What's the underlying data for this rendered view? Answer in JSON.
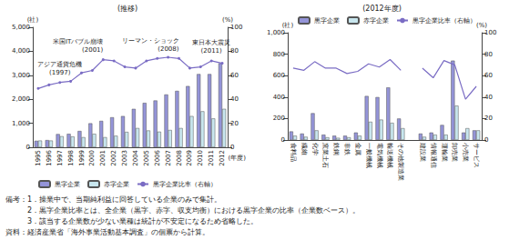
{
  "chart_data": [
    {
      "type": "bar",
      "title": "(推移)",
      "categories": [
        "1995",
        "1996",
        "1997",
        "1998",
        "1999",
        "2000",
        "2001",
        "2002",
        "2003",
        "2004",
        "2005",
        "2006",
        "2007",
        "2008",
        "2009",
        "2010",
        "2011",
        "2012"
      ],
      "series": [
        {
          "name": "黒字企業",
          "type": "bar",
          "color": "#9494d8",
          "values": [
            270,
            300,
            550,
            560,
            680,
            1000,
            1100,
            1250,
            1300,
            1600,
            1850,
            1950,
            2200,
            2350,
            2550,
            3050,
            3050,
            3500
          ]
        },
        {
          "name": "赤字企業",
          "type": "bar",
          "color": "#c8e6ee",
          "values": [
            280,
            280,
            460,
            450,
            420,
            560,
            420,
            480,
            640,
            800,
            700,
            650,
            720,
            800,
            1300,
            1500,
            1200,
            1600
          ]
        },
        {
          "name": "黒字企業比率（右軸）",
          "type": "line",
          "color": "#7a6cc4",
          "marker": "circle",
          "axis": "y2",
          "values": [
            49,
            52,
            54,
            55,
            62,
            64,
            73,
            72,
            67,
            66,
            72,
            74,
            75,
            74,
            66,
            67,
            72,
            70
          ]
        }
      ],
      "ylim": [
        0,
        5000
      ],
      "yticks": [
        0,
        {
          "value": 1000,
          "label": "1,000"
        },
        {
          "value": 2000,
          "label": "2,000"
        },
        {
          "value": 3000,
          "label": "3,000"
        },
        {
          "value": 4000,
          "label": "4,000"
        },
        {
          "value": 5000,
          "label": "5,000"
        }
      ],
      "y2lim": [
        0,
        100
      ],
      "y2ticks": [
        0,
        20,
        40,
        60,
        80,
        100
      ],
      "y_label": "(社)",
      "y2_label": "(%)",
      "x_label": "(年度)",
      "annotations": [
        {
          "text": "アジア通貨危機",
          "year": "(1997)",
          "x": "1997"
        },
        {
          "text": "米国ITバブル崩壊",
          "year": "(2001)",
          "x": "2001"
        },
        {
          "text": "リーマン・ショック",
          "year": "(2008)",
          "x": "2008"
        },
        {
          "text": "東日本大震災",
          "year": "(2011)",
          "x": "2011"
        }
      ],
      "legend": "bottom",
      "grid": false
    },
    {
      "type": "bar",
      "title": "(2012年度)",
      "categories": [
        "食料品",
        "繊維",
        "化学",
        "窯業土石",
        "鉄鋼",
        "非鉄",
        "金属",
        "一般機械",
        "電気機械",
        "輸送機械",
        "その他製造業",
        null,
        "建設業",
        "情報通信",
        "運輸業",
        "卸売業",
        "小売業",
        "サービス"
      ],
      "series": [
        {
          "name": "黒字企業",
          "type": "bar",
          "color": "#9494d8",
          "values": [
            80,
            60,
            250,
            50,
            40,
            40,
            70,
            410,
            400,
            490,
            200,
            null,
            60,
            70,
            140,
            740,
            70,
            90
          ]
        },
        {
          "name": "赤字企業",
          "type": "bar",
          "color": "#c8e6ee",
          "values": [
            40,
            30,
            90,
            25,
            20,
            25,
            40,
            170,
            190,
            160,
            110,
            null,
            30,
            50,
            50,
            320,
            110,
            90
          ]
        },
        {
          "name": "黒字企業比率（右軸）",
          "type": "line",
          "color": "#7a6cc4",
          "marker": "none",
          "axis": "y2",
          "values": [
            67,
            65,
            73,
            67,
            67,
            62,
            64,
            71,
            68,
            75,
            65,
            null,
            67,
            58,
            74,
            70,
            38,
            50
          ]
        }
      ],
      "ylim": [
        0,
        1000
      ],
      "yticks": [
        0,
        200,
        400,
        600,
        800,
        {
          "value": 1000,
          "label": "1,000"
        }
      ],
      "y2lim": [
        0,
        100
      ],
      "y2ticks": [
        0,
        20,
        40,
        60,
        80,
        100
      ],
      "y_label": "(社)",
      "y2_label": "(%)",
      "legend": "top",
      "grid": false
    }
  ],
  "notes_label": "備考：",
  "notes": [
    "1．操業中で、当期純利益に回答している企業のみで集計。",
    "2．黒字企業比率とは、全企業（黒字、赤字、収支均衡）における黒字企業の比率（企業数ベース）。",
    "3．該当する企業数が少ない業種は統計が不安定になるため省略した。"
  ],
  "source": "資料：経済産業省「海外事業活動基本調査」の個票から計算。"
}
